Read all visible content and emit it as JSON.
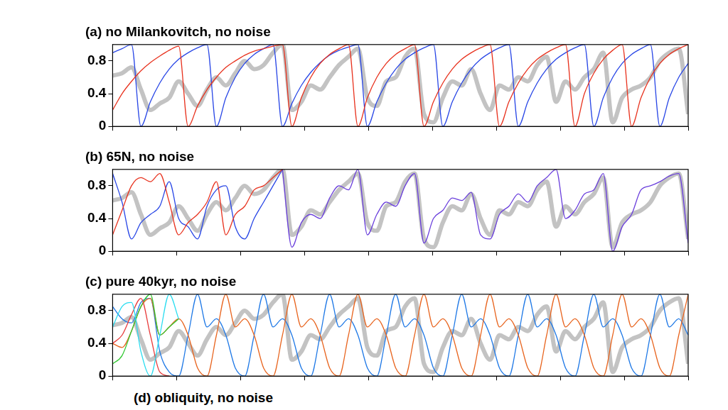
{
  "chart_data": [
    {
      "type": "line",
      "title": "(a) no Milankovitch, no noise",
      "categories": [
        null,
        null,
        null,
        null,
        null,
        null,
        null,
        null,
        null,
        null,
        null,
        null,
        null,
        null,
        null,
        null,
        null,
        null,
        null,
        null,
        null,
        null,
        null,
        null,
        null,
        null,
        null,
        null,
        null,
        null,
        null,
        null,
        null,
        null,
        null,
        null,
        null,
        null,
        null,
        null,
        null,
        null,
        null,
        null,
        null,
        null,
        null,
        null,
        null,
        null,
        null,
        null,
        null,
        null,
        null,
        null,
        null,
        null,
        null,
        null,
        null,
        null
      ],
      "series": [
        {
          "color": "#c3c3c3",
          "values": [
            0.62,
            0.65,
            0.72,
            0.45,
            0.2,
            0.28,
            0.35,
            0.55,
            0.4,
            0.25,
            0.45,
            0.6,
            0.5,
            0.65,
            0.8,
            0.7,
            0.75,
            0.9,
            1.0,
            0.2,
            0.3,
            0.5,
            0.45,
            0.6,
            0.75,
            0.85,
            0.95,
            0.35,
            0.25,
            0.55,
            0.6,
            0.85,
            0.95,
            0.15,
            0.05,
            0.35,
            0.55,
            0.5,
            0.7,
            0.4,
            0.2,
            0.5,
            0.45,
            0.6,
            0.55,
            0.75,
            0.85,
            0.3,
            0.55,
            0.45,
            0.6,
            0.7,
            0.9,
            0.05,
            0.35,
            0.45,
            0.5,
            0.6,
            0.8,
            0.9,
            0.95,
            0.15
          ]
        },
        {
          "color": "#e8321e",
          "values": [
            0.2,
            0.4,
            0.55,
            0.68,
            0.78,
            0.86,
            0.93,
            0.98,
            0,
            0.25,
            0.45,
            0.6,
            0.72,
            0.8,
            0.87,
            0.92,
            0.95,
            0.98,
            1.0,
            0,
            0.35,
            0.6,
            0.77,
            0.88,
            0.95,
            1.0,
            0,
            0.35,
            0.6,
            0.77,
            0.88,
            0.95,
            1.0,
            0,
            0.3,
            0.53,
            0.7,
            0.82,
            0.9,
            0.96,
            1.0,
            0,
            0.3,
            0.53,
            0.7,
            0.82,
            0.9,
            0.96,
            1.0,
            0,
            0.4,
            0.65,
            0.82,
            0.93,
            1.0,
            0,
            0.35,
            0.6,
            0.77,
            0.88,
            0.95,
            1.0
          ]
        },
        {
          "color": "#2846e6",
          "values": [
            0.9,
            0.95,
            1.0,
            0,
            0.3,
            0.53,
            0.7,
            0.82,
            0.9,
            0.96,
            1.0,
            0,
            0.35,
            0.6,
            0.77,
            0.88,
            0.95,
            1.0,
            0,
            0.28,
            0.5,
            0.66,
            0.78,
            0.87,
            0.93,
            0.97,
            1.0,
            0,
            0.3,
            0.53,
            0.7,
            0.82,
            0.9,
            0.96,
            1.0,
            0,
            0.3,
            0.53,
            0.7,
            0.82,
            0.9,
            0.96,
            1.0,
            0,
            0.3,
            0.53,
            0.7,
            0.82,
            0.9,
            0.96,
            1.0,
            0,
            0.35,
            0.6,
            0.77,
            0.88,
            0.95,
            1.0,
            0,
            0.35,
            0.6,
            0.77
          ]
        }
      ],
      "ylim": [
        0,
        1
      ],
      "yticks": [
        0,
        0.4,
        0.8
      ],
      "grid": false,
      "tick_labels": "y"
    },
    {
      "type": "line",
      "title": "(b) 65N, no noise",
      "categories": [
        null,
        null,
        null,
        null,
        null,
        null,
        null,
        null,
        null,
        null,
        null,
        null,
        null,
        null,
        null,
        null,
        null,
        null,
        null,
        null,
        null,
        null,
        null,
        null,
        null,
        null,
        null,
        null,
        null,
        null,
        null,
        null,
        null,
        null,
        null,
        null,
        null,
        null,
        null,
        null,
        null,
        null,
        null,
        null,
        null,
        null,
        null,
        null,
        null,
        null,
        null,
        null,
        null,
        null,
        null,
        null,
        null,
        null,
        null,
        null,
        null,
        null
      ],
      "series": [
        {
          "color": "#c3c3c3",
          "values": [
            0.62,
            0.65,
            0.72,
            0.45,
            0.2,
            0.28,
            0.35,
            0.55,
            0.4,
            0.25,
            0.45,
            0.6,
            0.5,
            0.65,
            0.8,
            0.7,
            0.75,
            0.9,
            1.0,
            0.2,
            0.3,
            0.5,
            0.45,
            0.6,
            0.75,
            0.85,
            0.95,
            0.35,
            0.25,
            0.55,
            0.6,
            0.85,
            0.95,
            0.15,
            0.05,
            0.35,
            0.55,
            0.5,
            0.7,
            0.4,
            0.2,
            0.5,
            0.45,
            0.6,
            0.55,
            0.75,
            0.85,
            0.3,
            0.55,
            0.45,
            0.6,
            0.7,
            0.9,
            0.05,
            0.35,
            0.45,
            0.5,
            0.6,
            0.8,
            0.9,
            0.95,
            0.15
          ]
        },
        {
          "color": "#e8321e",
          "values": [
            0.2,
            0.5,
            0.8,
            0.9,
            0.85,
            0.95,
            0.6,
            0.2,
            0.35,
            0.45,
            0.6,
            0.85,
            0.2,
            0.45,
            0.55,
            0.75,
            0.8,
            0.9,
            1.0,
            null,
            null,
            null,
            null,
            null,
            null,
            null,
            null,
            null,
            null,
            null,
            null,
            null,
            null,
            null,
            null,
            null,
            null,
            null,
            null,
            null,
            null,
            null,
            null,
            null,
            null,
            null,
            null,
            null,
            null,
            null,
            null,
            null,
            null,
            null,
            null,
            null,
            null,
            null,
            null,
            null,
            null,
            null
          ]
        },
        {
          "color": "#2846e6",
          "values": [
            0.95,
            0.6,
            0.15,
            0.35,
            0.45,
            0.55,
            0.85,
            0.4,
            0.3,
            0.15,
            0.55,
            0.75,
            0.8,
            0.3,
            0.15,
            0.4,
            0.6,
            0.8,
            1.0,
            null,
            null,
            null,
            null,
            null,
            null,
            null,
            null,
            null,
            null,
            null,
            null,
            null,
            null,
            null,
            null,
            null,
            null,
            null,
            null,
            null,
            null,
            null,
            null,
            null,
            null,
            null,
            null,
            null,
            null,
            null,
            null,
            null,
            null,
            null,
            null,
            null,
            null,
            null,
            null,
            null,
            null,
            null
          ]
        },
        {
          "color": "#6a3fdc",
          "values": [
            null,
            null,
            null,
            null,
            null,
            null,
            null,
            null,
            null,
            null,
            null,
            null,
            null,
            null,
            null,
            null,
            null,
            null,
            1.0,
            0.05,
            0.35,
            0.45,
            0.4,
            0.65,
            0.8,
            0.75,
            1.0,
            0.2,
            0.45,
            0.6,
            0.55,
            0.8,
            0.95,
            0.1,
            0.4,
            0.5,
            0.65,
            0.62,
            0.72,
            0.2,
            0.15,
            0.45,
            0.55,
            0.7,
            0.6,
            0.8,
            0.9,
            1.0,
            0.4,
            0.5,
            0.7,
            0.75,
            0.95,
            0.0,
            0.3,
            0.45,
            0.75,
            0.8,
            0.85,
            0.92,
            0.95,
            0.1
          ]
        }
      ],
      "ylim": [
        0,
        1
      ],
      "yticks": [
        0,
        0.4,
        0.8
      ],
      "grid": false,
      "tick_labels": "y"
    },
    {
      "type": "line",
      "title": "(c) pure 40kyr, no noise",
      "categories": [
        null,
        null,
        null,
        null,
        null,
        null,
        null,
        null,
        null,
        null,
        null,
        null,
        null,
        null,
        null,
        null,
        null,
        null,
        null,
        null,
        null,
        null,
        null,
        null,
        null,
        null,
        null,
        null,
        null,
        null,
        null,
        null,
        null,
        null,
        null,
        null,
        null,
        null,
        null,
        null,
        null,
        null,
        null,
        null,
        null,
        null,
        null,
        null,
        null,
        null,
        null,
        null,
        null,
        null,
        null,
        null,
        null,
        null,
        null,
        null,
        null,
        null
      ],
      "series": [
        {
          "color": "#c3c3c3",
          "values": [
            0.62,
            0.65,
            0.72,
            0.45,
            0.2,
            0.28,
            0.35,
            0.55,
            0.4,
            0.25,
            0.45,
            0.6,
            0.5,
            0.65,
            0.8,
            0.7,
            0.75,
            0.9,
            1.0,
            0.2,
            0.3,
            0.5,
            0.45,
            0.6,
            0.75,
            0.85,
            0.95,
            0.35,
            0.25,
            0.55,
            0.6,
            0.85,
            0.95,
            0.15,
            0.05,
            0.35,
            0.55,
            0.5,
            0.7,
            0.4,
            0.2,
            0.5,
            0.45,
            0.6,
            0.55,
            0.75,
            0.85,
            0.3,
            0.55,
            0.45,
            0.6,
            0.7,
            0.9,
            0.05,
            0.35,
            0.45,
            0.5,
            0.6,
            0.8,
            0.9,
            0.95,
            0.15
          ]
        },
        {
          "color": "#28dcf0",
          "values": [
            0.6,
            0.85,
            0.9,
            0.3,
            0.0,
            0.5,
            1.0,
            0.7,
            null,
            null,
            null,
            null,
            null,
            null,
            null,
            null,
            null,
            null,
            null,
            null,
            null,
            null,
            null,
            null,
            null,
            null,
            null,
            null,
            null,
            null,
            null,
            null,
            null,
            null,
            null,
            null,
            null,
            null,
            null,
            null,
            null,
            null,
            null,
            null,
            null,
            null,
            null,
            null,
            null,
            null,
            null,
            null,
            null,
            null,
            null,
            null,
            null,
            null,
            null,
            null,
            null,
            null
          ]
        },
        {
          "color": "#e83c3c",
          "values": [
            0.4,
            0.5,
            0.75,
            0.95,
            0.5,
            0.05,
            0.0,
            null,
            null,
            null,
            null,
            null,
            null,
            null,
            null,
            null,
            null,
            null,
            null,
            null,
            null,
            null,
            null,
            null,
            null,
            null,
            null,
            null,
            null,
            null,
            null,
            null,
            null,
            null,
            null,
            null,
            null,
            null,
            null,
            null,
            null,
            null,
            null,
            null,
            null,
            null,
            null,
            null,
            null,
            null,
            null,
            null,
            null,
            null,
            null,
            null,
            null,
            null,
            null,
            null,
            null,
            null
          ]
        },
        {
          "color": "#32c832",
          "values": [
            0.15,
            0.25,
            0.55,
            0.85,
            1.0,
            0.5,
            0.6,
            0.7,
            null,
            null,
            null,
            null,
            null,
            null,
            null,
            null,
            null,
            null,
            null,
            null,
            null,
            null,
            null,
            null,
            null,
            null,
            null,
            null,
            null,
            null,
            null,
            null,
            null,
            null,
            null,
            null,
            null,
            null,
            null,
            null,
            null,
            null,
            null,
            null,
            null,
            null,
            null,
            null,
            null,
            null,
            null,
            null,
            null,
            null,
            null,
            null,
            null,
            null,
            null,
            null,
            null,
            null
          ]
        },
        {
          "color": "#e8641e",
          "values": [
            0.4,
            0.35,
            0.55,
            0.85,
            0.95,
            0.5,
            0.6,
            0.7,
            0.5,
            0.1,
            0.0,
            0.5,
            1.0,
            0.6,
            0.7,
            0.5,
            0.1,
            0.0,
            0.5,
            1.0,
            0.6,
            0.7,
            0.5,
            0.1,
            0.0,
            0.5,
            1.0,
            0.6,
            0.7,
            0.5,
            0.1,
            0.0,
            0.5,
            1.0,
            0.6,
            0.7,
            0.5,
            0.1,
            0.0,
            0.5,
            1.0,
            0.6,
            0.7,
            0.5,
            0.1,
            0.0,
            0.5,
            1.0,
            0.6,
            0.7,
            0.5,
            0.1,
            0.0,
            0.5,
            1.0,
            0.6,
            0.7,
            0.5,
            0.1,
            0.0,
            0.5,
            1.0
          ]
        },
        {
          "color": "#1e78e6",
          "values": [
            0.85,
            0.7,
            0.65,
            0.9,
            0.95,
            0.3,
            0.05,
            0.0,
            0.5,
            1.0,
            0.6,
            0.7,
            0.5,
            0.1,
            0.0,
            0.5,
            1.0,
            0.6,
            0.7,
            0.5,
            0.1,
            0.0,
            0.5,
            1.0,
            0.6,
            0.7,
            0.5,
            0.1,
            0.0,
            0.5,
            1.0,
            0.6,
            0.7,
            0.5,
            0.1,
            0.0,
            0.5,
            1.0,
            0.6,
            0.7,
            0.5,
            0.1,
            0.0,
            0.5,
            1.0,
            0.6,
            0.7,
            0.5,
            0.1,
            0.0,
            0.5,
            1.0,
            0.6,
            0.7,
            0.5,
            0.1,
            0.0,
            0.5,
            1.0,
            0.6,
            0.7,
            0.5
          ]
        }
      ],
      "ylim": [
        0,
        1
      ],
      "yticks": [
        0,
        0.4,
        0.8
      ],
      "grid": false,
      "tick_labels": "y"
    }
  ],
  "footer_title": "(d) obliquity, no noise"
}
